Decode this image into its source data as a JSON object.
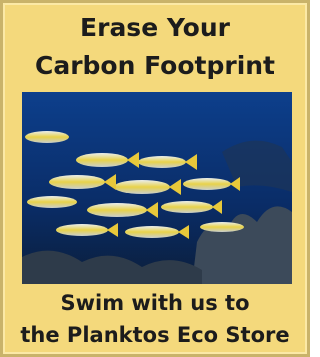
{
  "header": {
    "lines": [
      "Erase Your",
      "Carbon Footprint"
    ]
  },
  "footer": {
    "lines": [
      "Swim with us to",
      "the Planktos Eco Store"
    ]
  }
}
